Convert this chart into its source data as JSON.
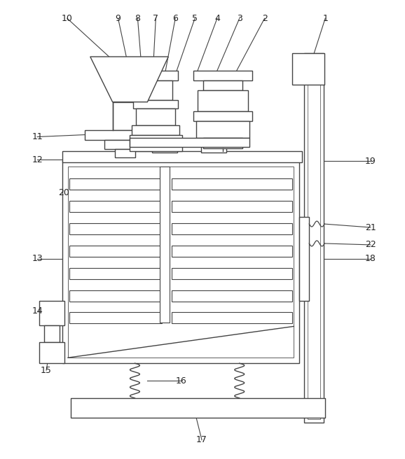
{
  "figsize": [
    5.78,
    6.56
  ],
  "dpi": 100,
  "bg_color": "#ffffff",
  "lc": "#444444",
  "lw": 1.0,
  "thin": 0.7,
  "thick": 1.3
}
